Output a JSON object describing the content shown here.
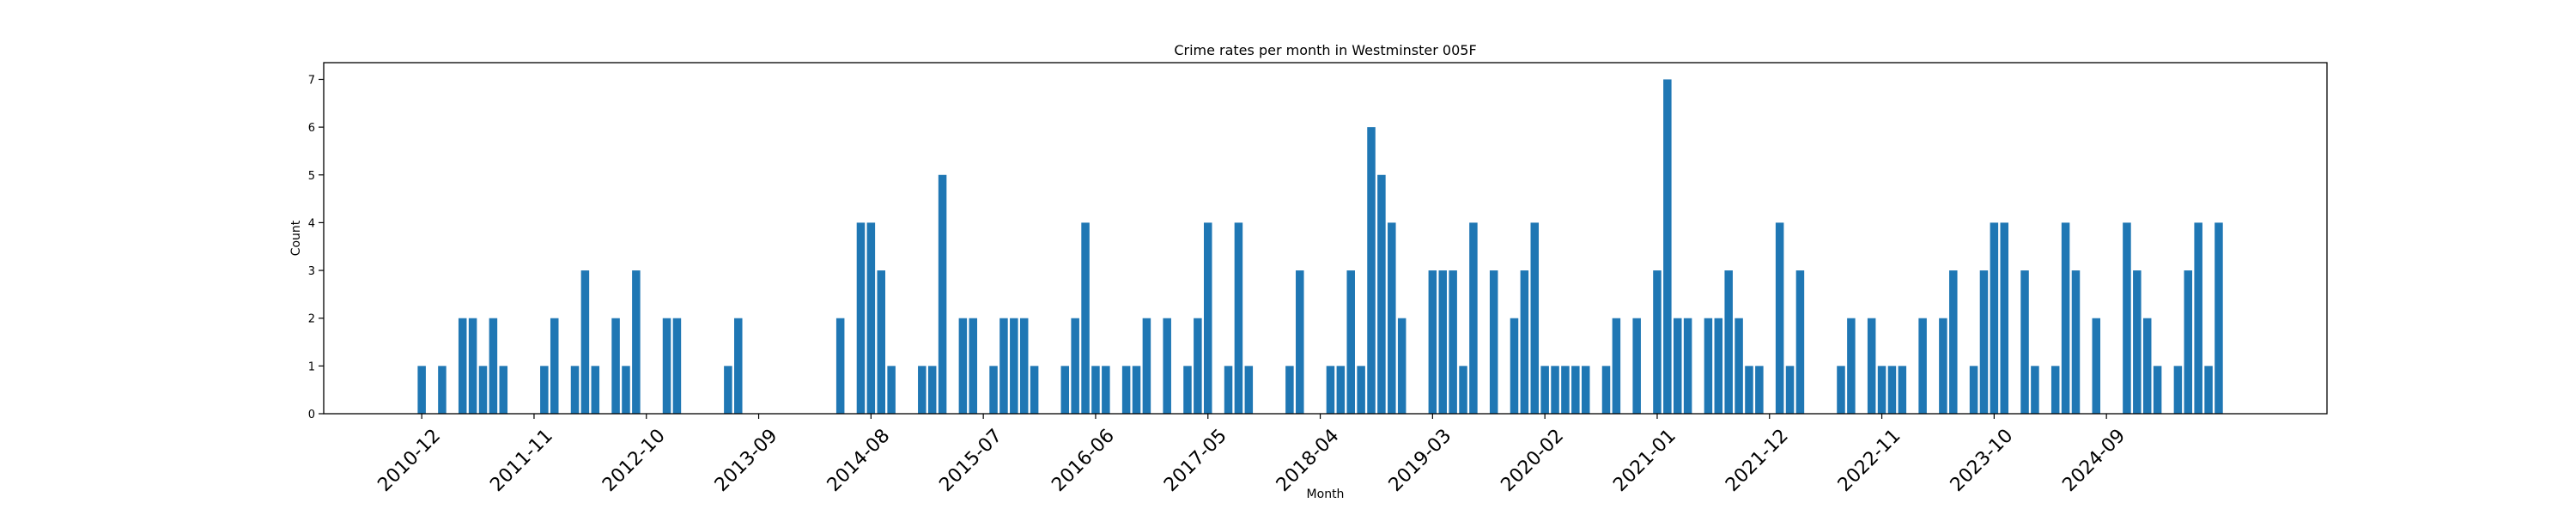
{
  "chart_data": {
    "type": "bar",
    "title": "Crime rates per month in Westminster 005F",
    "xlabel": "Month",
    "ylabel": "Count",
    "ylim": [
      0,
      7.35
    ],
    "yticks": [
      0,
      1,
      2,
      3,
      4,
      5,
      6,
      7
    ],
    "xticks": [
      "2010-12",
      "2011-11",
      "2012-10",
      "2013-09",
      "2014-08",
      "2015-07",
      "2016-06",
      "2017-05",
      "2018-04",
      "2019-03",
      "2020-02",
      "2021-01",
      "2021-12",
      "2022-11",
      "2023-10",
      "2024-09"
    ],
    "start_month": "2010-12",
    "color": "#1f77b4",
    "grid": false,
    "values": [
      1,
      0,
      1,
      0,
      2,
      2,
      1,
      2,
      1,
      0,
      0,
      0,
      1,
      2,
      0,
      1,
      3,
      1,
      0,
      2,
      1,
      3,
      0,
      0,
      2,
      2,
      0,
      0,
      0,
      0,
      1,
      2,
      0,
      0,
      0,
      0,
      0,
      0,
      0,
      0,
      0,
      2,
      0,
      4,
      4,
      3,
      1,
      0,
      0,
      1,
      1,
      5,
      0,
      2,
      2,
      0,
      1,
      2,
      2,
      2,
      1,
      0,
      0,
      1,
      2,
      4,
      1,
      1,
      0,
      1,
      1,
      2,
      0,
      2,
      0,
      1,
      2,
      4,
      0,
      1,
      4,
      1,
      0,
      0,
      0,
      1,
      3,
      0,
      0,
      1,
      1,
      3,
      1,
      6,
      5,
      4,
      2,
      0,
      0,
      3,
      3,
      3,
      1,
      4,
      0,
      3,
      0,
      2,
      3,
      4,
      1,
      1,
      1,
      1,
      1,
      0,
      1,
      2,
      0,
      2,
      0,
      3,
      7,
      2,
      2,
      0,
      2,
      2,
      3,
      2,
      1,
      1,
      0,
      4,
      1,
      3,
      0,
      0,
      0,
      1,
      2,
      0,
      2,
      1,
      1,
      1,
      0,
      2,
      0,
      2,
      3,
      0,
      1,
      3,
      4,
      4,
      0,
      3,
      1,
      0,
      1,
      4,
      3,
      0,
      2,
      0,
      0,
      4,
      3,
      2,
      1,
      0,
      1,
      3,
      4,
      1,
      4
    ]
  }
}
